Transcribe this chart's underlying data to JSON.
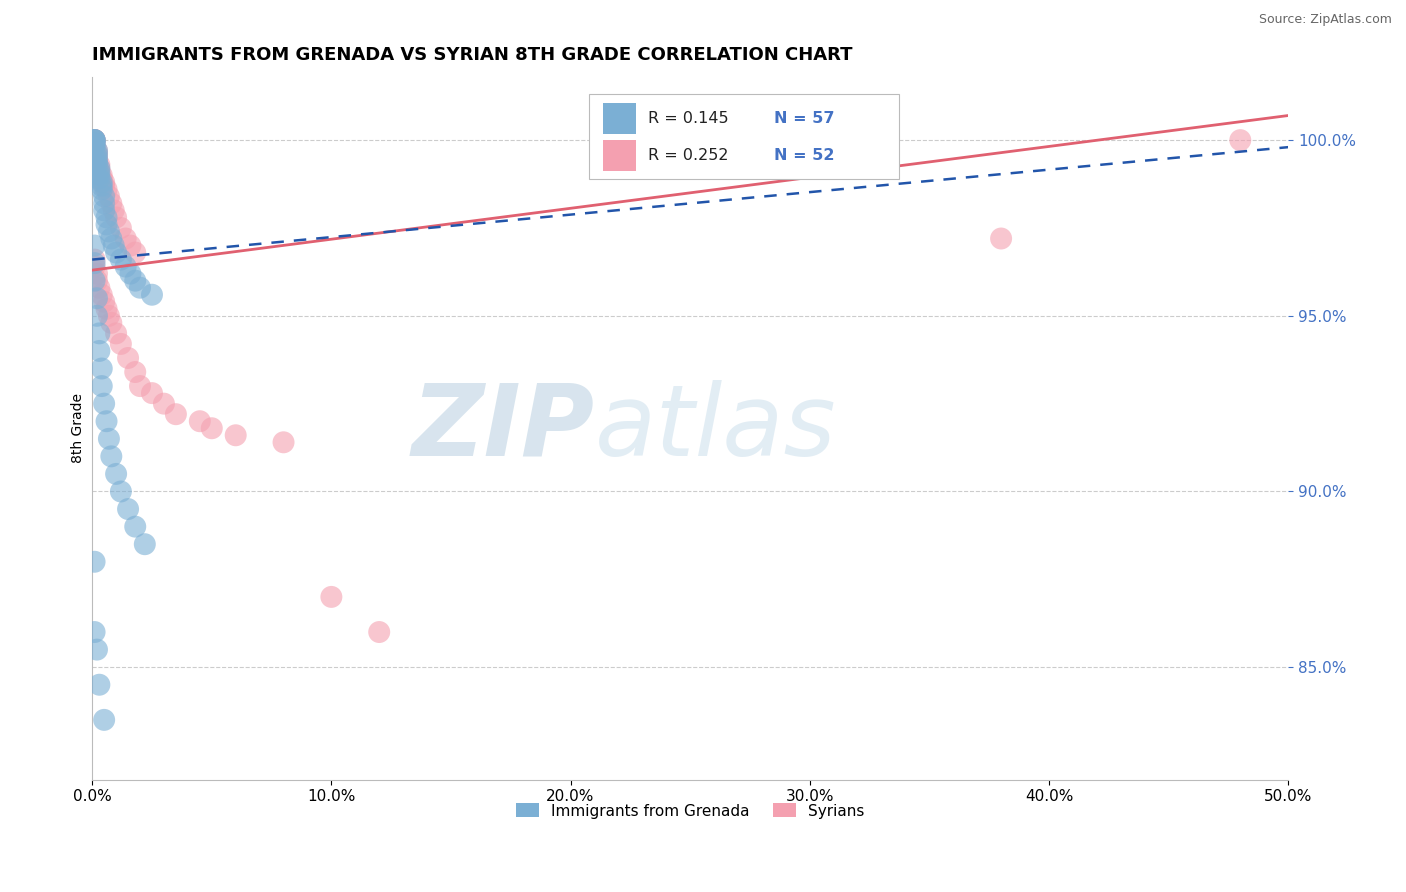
{
  "title": "IMMIGRANTS FROM GRENADA VS SYRIAN 8TH GRADE CORRELATION CHART",
  "source": "Source: ZipAtlas.com",
  "ylabel": "8th Grade",
  "xlim": [
    0.0,
    0.5
  ],
  "ylim": [
    0.818,
    1.018
  ],
  "xtick_values": [
    0.0,
    0.1,
    0.2,
    0.3,
    0.4,
    0.5
  ],
  "xtick_labels": [
    "0.0%",
    "10.0%",
    "20.0%",
    "30.0%",
    "40.0%",
    "50.0%"
  ],
  "ytick_values": [
    0.85,
    0.9,
    0.95,
    1.0
  ],
  "ytick_labels": [
    "85.0%",
    "90.0%",
    "95.0%",
    "100.0%"
  ],
  "grid_color": "#cccccc",
  "background_color": "#ffffff",
  "blue_color": "#7bafd4",
  "pink_color": "#f4a0b0",
  "blue_line_color": "#2255aa",
  "pink_line_color": "#e06070",
  "R_blue": 0.145,
  "N_blue": 57,
  "R_pink": 0.252,
  "N_pink": 52,
  "legend_label_blue": "Immigrants from Grenada",
  "legend_label_pink": "Syrians",
  "watermark_zip": "ZIP",
  "watermark_atlas": "atlas",
  "title_fontsize": 13,
  "tick_fontsize": 11,
  "source_fontsize": 9,
  "blue_x": [
    0.001,
    0.001,
    0.001,
    0.001,
    0.001,
    0.001,
    0.001,
    0.002,
    0.002,
    0.002,
    0.002,
    0.002,
    0.003,
    0.003,
    0.003,
    0.003,
    0.004,
    0.004,
    0.004,
    0.005,
    0.005,
    0.005,
    0.006,
    0.006,
    0.007,
    0.008,
    0.009,
    0.01,
    0.012,
    0.014,
    0.016,
    0.018,
    0.02,
    0.025,
    0.001,
    0.001,
    0.001,
    0.002,
    0.002,
    0.003,
    0.003,
    0.004,
    0.004,
    0.005,
    0.006,
    0.007,
    0.008,
    0.01,
    0.012,
    0.015,
    0.018,
    0.022,
    0.001,
    0.001,
    0.002,
    0.003,
    0.005
  ],
  "blue_y": [
    1.0,
    1.0,
    1.0,
    1.0,
    0.999,
    0.999,
    0.998,
    0.997,
    0.996,
    0.995,
    0.994,
    0.993,
    0.992,
    0.991,
    0.99,
    0.989,
    0.988,
    0.987,
    0.986,
    0.984,
    0.982,
    0.98,
    0.978,
    0.976,
    0.974,
    0.972,
    0.97,
    0.968,
    0.966,
    0.964,
    0.962,
    0.96,
    0.958,
    0.956,
    0.97,
    0.965,
    0.96,
    0.955,
    0.95,
    0.945,
    0.94,
    0.935,
    0.93,
    0.925,
    0.92,
    0.915,
    0.91,
    0.905,
    0.9,
    0.895,
    0.89,
    0.885,
    0.88,
    0.86,
    0.855,
    0.845,
    0.835
  ],
  "pink_x": [
    0.001,
    0.001,
    0.001,
    0.001,
    0.001,
    0.001,
    0.002,
    0.002,
    0.002,
    0.002,
    0.003,
    0.003,
    0.003,
    0.004,
    0.004,
    0.005,
    0.005,
    0.006,
    0.007,
    0.008,
    0.009,
    0.01,
    0.012,
    0.014,
    0.016,
    0.018,
    0.001,
    0.001,
    0.002,
    0.002,
    0.003,
    0.004,
    0.005,
    0.006,
    0.007,
    0.008,
    0.01,
    0.012,
    0.015,
    0.018,
    0.02,
    0.025,
    0.03,
    0.035,
    0.045,
    0.05,
    0.06,
    0.08,
    0.1,
    0.12,
    0.38,
    0.48
  ],
  "pink_y": [
    1.0,
    1.0,
    1.0,
    1.0,
    0.999,
    0.998,
    0.997,
    0.996,
    0.995,
    0.994,
    0.993,
    0.992,
    0.991,
    0.99,
    0.989,
    0.988,
    0.987,
    0.986,
    0.984,
    0.982,
    0.98,
    0.978,
    0.975,
    0.972,
    0.97,
    0.968,
    0.966,
    0.964,
    0.962,
    0.96,
    0.958,
    0.956,
    0.954,
    0.952,
    0.95,
    0.948,
    0.945,
    0.942,
    0.938,
    0.934,
    0.93,
    0.928,
    0.925,
    0.922,
    0.92,
    0.918,
    0.916,
    0.914,
    0.87,
    0.86,
    0.972,
    1.0
  ]
}
